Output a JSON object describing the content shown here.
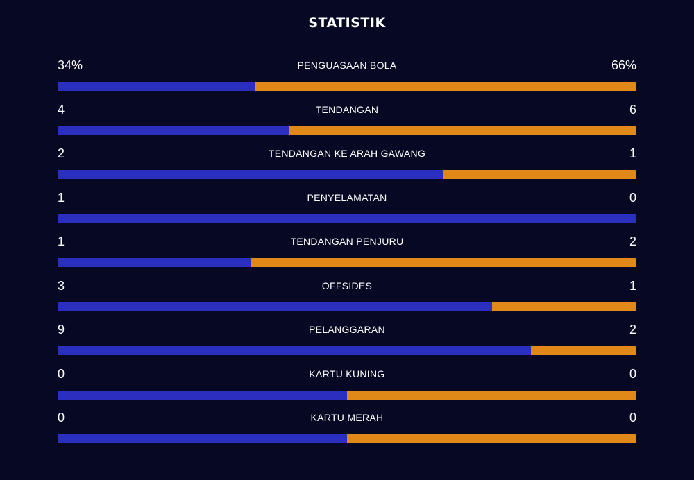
{
  "title": "STATISTIK",
  "colors": {
    "background": "#070823",
    "home": "#2a2fbf",
    "away": "#e18918"
  },
  "stats": [
    {
      "label": "PENGUASAAN BOLA",
      "home": "34%",
      "away": "66%",
      "home_share": 0.34
    },
    {
      "label": "TENDANGAN",
      "home": "4",
      "away": "6",
      "home_share": 0.4
    },
    {
      "label": "TENDANGAN KE ARAH GAWANG",
      "home": "2",
      "away": "1",
      "home_share": 0.667
    },
    {
      "label": "PENYELAMATAN",
      "home": "1",
      "away": "0",
      "home_share": 1.0
    },
    {
      "label": "TENDANGAN PENJURU",
      "home": "1",
      "away": "2",
      "home_share": 0.333
    },
    {
      "label": "OFFSIDES",
      "home": "3",
      "away": "1",
      "home_share": 0.75
    },
    {
      "label": "PELANGGARAN",
      "home": "9",
      "away": "2",
      "home_share": 0.818
    },
    {
      "label": "KARTU KUNING",
      "home": "0",
      "away": "0",
      "home_share": 0.5
    },
    {
      "label": "KARTU MERAH",
      "home": "0",
      "away": "0",
      "home_share": 0.5
    }
  ]
}
